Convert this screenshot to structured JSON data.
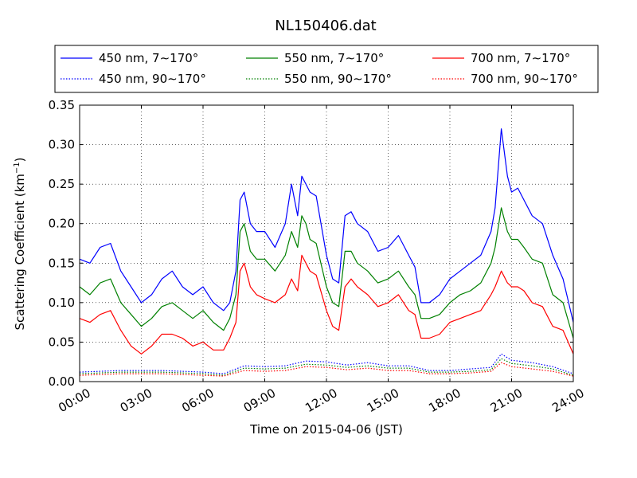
{
  "chart_data": {
    "type": "line",
    "title": "NL150406.dat",
    "xlabel": "Time on 2015-04-06 (JST)",
    "ylabel": "Scattering Coefficient (km",
    "ylabel_exp": "−1",
    "ylabel_close": ")",
    "xlim": [
      0,
      24
    ],
    "ylim": [
      0,
      0.35
    ],
    "grid": true,
    "legend_position": "top (outside, above plot)",
    "x_ticks": [
      {
        "v": 0,
        "label": "00:00"
      },
      {
        "v": 3,
        "label": "03:00"
      },
      {
        "v": 6,
        "label": "06:00"
      },
      {
        "v": 9,
        "label": "09:00"
      },
      {
        "v": 12,
        "label": "12:00"
      },
      {
        "v": 15,
        "label": "15:00"
      },
      {
        "v": 18,
        "label": "18:00"
      },
      {
        "v": 21,
        "label": "21:00"
      },
      {
        "v": 24,
        "label": "24:00"
      }
    ],
    "y_ticks": [
      {
        "v": 0.0,
        "label": "0.00"
      },
      {
        "v": 0.05,
        "label": "0.05"
      },
      {
        "v": 0.1,
        "label": "0.10"
      },
      {
        "v": 0.15,
        "label": "0.15"
      },
      {
        "v": 0.2,
        "label": "0.20"
      },
      {
        "v": 0.25,
        "label": "0.25"
      },
      {
        "v": 0.3,
        "label": "0.30"
      },
      {
        "v": 0.35,
        "label": "0.35"
      }
    ],
    "series": [
      {
        "name": "450 nm, 7∼170°",
        "color": "#0000ff",
        "style": "solid",
        "x": [
          0,
          0.5,
          1,
          1.5,
          2,
          2.5,
          3,
          3.5,
          4,
          4.5,
          5,
          5.5,
          6,
          6.5,
          7,
          7.3,
          7.6,
          7.8,
          8,
          8.3,
          8.6,
          9,
          9.5,
          10,
          10.3,
          10.6,
          10.8,
          11,
          11.2,
          11.5,
          12,
          12.3,
          12.6,
          12.9,
          13.2,
          13.5,
          14,
          14.5,
          15,
          15.5,
          16,
          16.3,
          16.6,
          17,
          17.5,
          18,
          18.5,
          19,
          19.5,
          20,
          20.2,
          20.5,
          20.8,
          21,
          21.3,
          21.6,
          22,
          22.5,
          23,
          23.5,
          24
        ],
        "y": [
          0.155,
          0.15,
          0.17,
          0.175,
          0.14,
          0.12,
          0.1,
          0.11,
          0.13,
          0.14,
          0.12,
          0.11,
          0.12,
          0.1,
          0.09,
          0.1,
          0.14,
          0.23,
          0.24,
          0.2,
          0.19,
          0.19,
          0.17,
          0.2,
          0.25,
          0.21,
          0.26,
          0.25,
          0.24,
          0.235,
          0.16,
          0.13,
          0.125,
          0.21,
          0.215,
          0.2,
          0.19,
          0.165,
          0.17,
          0.185,
          0.16,
          0.145,
          0.1,
          0.1,
          0.11,
          0.13,
          0.14,
          0.15,
          0.16,
          0.19,
          0.22,
          0.32,
          0.26,
          0.24,
          0.245,
          0.23,
          0.21,
          0.2,
          0.16,
          0.13,
          0.075
        ]
      },
      {
        "name": "450 nm, 90∼170°",
        "color": "#0000ff",
        "style": "dotted",
        "x": [
          0,
          2,
          4,
          6,
          7,
          8,
          9,
          10,
          11,
          12,
          13,
          14,
          15,
          16,
          17,
          18,
          19,
          20,
          20.5,
          21,
          22,
          23,
          24
        ],
        "y": [
          0.012,
          0.014,
          0.014,
          0.012,
          0.01,
          0.02,
          0.019,
          0.02,
          0.026,
          0.025,
          0.021,
          0.024,
          0.02,
          0.02,
          0.014,
          0.014,
          0.016,
          0.018,
          0.035,
          0.027,
          0.024,
          0.019,
          0.01
        ]
      },
      {
        "name": "550 nm, 7∼170°",
        "color": "#008000",
        "style": "solid",
        "x": [
          0,
          0.5,
          1,
          1.5,
          2,
          2.5,
          3,
          3.5,
          4,
          4.5,
          5,
          5.5,
          6,
          6.5,
          7,
          7.3,
          7.6,
          7.8,
          8,
          8.3,
          8.6,
          9,
          9.5,
          10,
          10.3,
          10.6,
          10.8,
          11,
          11.2,
          11.5,
          12,
          12.3,
          12.6,
          12.9,
          13.2,
          13.5,
          14,
          14.5,
          15,
          15.5,
          16,
          16.3,
          16.6,
          17,
          17.5,
          18,
          18.5,
          19,
          19.5,
          20,
          20.2,
          20.5,
          20.8,
          21,
          21.3,
          21.6,
          22,
          22.5,
          23,
          23.5,
          24
        ],
        "y": [
          0.12,
          0.11,
          0.125,
          0.13,
          0.1,
          0.085,
          0.07,
          0.08,
          0.095,
          0.1,
          0.09,
          0.08,
          0.09,
          0.075,
          0.065,
          0.08,
          0.11,
          0.19,
          0.2,
          0.165,
          0.155,
          0.155,
          0.14,
          0.16,
          0.19,
          0.17,
          0.21,
          0.2,
          0.18,
          0.175,
          0.12,
          0.1,
          0.095,
          0.165,
          0.165,
          0.15,
          0.14,
          0.125,
          0.13,
          0.14,
          0.12,
          0.11,
          0.08,
          0.08,
          0.085,
          0.1,
          0.11,
          0.115,
          0.125,
          0.15,
          0.17,
          0.22,
          0.19,
          0.18,
          0.18,
          0.17,
          0.155,
          0.15,
          0.11,
          0.1,
          0.055
        ]
      },
      {
        "name": "550 nm, 90∼170°",
        "color": "#008000",
        "style": "dotted",
        "x": [
          0,
          2,
          4,
          6,
          7,
          8,
          9,
          10,
          11,
          12,
          13,
          14,
          15,
          16,
          17,
          18,
          19,
          20,
          20.5,
          21,
          22,
          23,
          24
        ],
        "y": [
          0.01,
          0.012,
          0.012,
          0.01,
          0.008,
          0.017,
          0.016,
          0.017,
          0.022,
          0.021,
          0.018,
          0.02,
          0.017,
          0.017,
          0.012,
          0.012,
          0.013,
          0.015,
          0.029,
          0.023,
          0.02,
          0.016,
          0.008
        ]
      },
      {
        "name": "700 nm, 7∼170°",
        "color": "#ff0000",
        "style": "solid",
        "x": [
          0,
          0.5,
          1,
          1.5,
          2,
          2.5,
          3,
          3.5,
          4,
          4.5,
          5,
          5.5,
          6,
          6.5,
          7,
          7.3,
          7.6,
          7.8,
          8,
          8.3,
          8.6,
          9,
          9.5,
          10,
          10.3,
          10.6,
          10.8,
          11,
          11.2,
          11.5,
          12,
          12.3,
          12.6,
          12.9,
          13.2,
          13.5,
          14,
          14.5,
          15,
          15.5,
          16,
          16.3,
          16.6,
          17,
          17.5,
          18,
          18.5,
          19,
          19.5,
          20,
          20.2,
          20.5,
          20.8,
          21,
          21.3,
          21.6,
          22,
          22.5,
          23,
          23.5,
          24
        ],
        "y": [
          0.08,
          0.075,
          0.085,
          0.09,
          0.065,
          0.045,
          0.035,
          0.045,
          0.06,
          0.06,
          0.055,
          0.045,
          0.05,
          0.04,
          0.04,
          0.055,
          0.075,
          0.14,
          0.15,
          0.12,
          0.11,
          0.105,
          0.1,
          0.11,
          0.13,
          0.115,
          0.16,
          0.15,
          0.14,
          0.135,
          0.09,
          0.07,
          0.065,
          0.12,
          0.13,
          0.12,
          0.11,
          0.095,
          0.1,
          0.11,
          0.09,
          0.085,
          0.055,
          0.055,
          0.06,
          0.075,
          0.08,
          0.085,
          0.09,
          0.11,
          0.12,
          0.14,
          0.125,
          0.12,
          0.12,
          0.115,
          0.1,
          0.095,
          0.07,
          0.065,
          0.035
        ]
      },
      {
        "name": "700 nm, 90∼170°",
        "color": "#ff0000",
        "style": "dotted",
        "x": [
          0,
          2,
          4,
          6,
          7,
          8,
          9,
          10,
          11,
          12,
          13,
          14,
          15,
          16,
          17,
          18,
          19,
          20,
          20.5,
          21,
          22,
          23,
          24
        ],
        "y": [
          0.008,
          0.01,
          0.01,
          0.008,
          0.007,
          0.014,
          0.013,
          0.014,
          0.019,
          0.018,
          0.015,
          0.017,
          0.014,
          0.014,
          0.01,
          0.01,
          0.011,
          0.013,
          0.024,
          0.019,
          0.016,
          0.013,
          0.007
        ]
      }
    ]
  }
}
